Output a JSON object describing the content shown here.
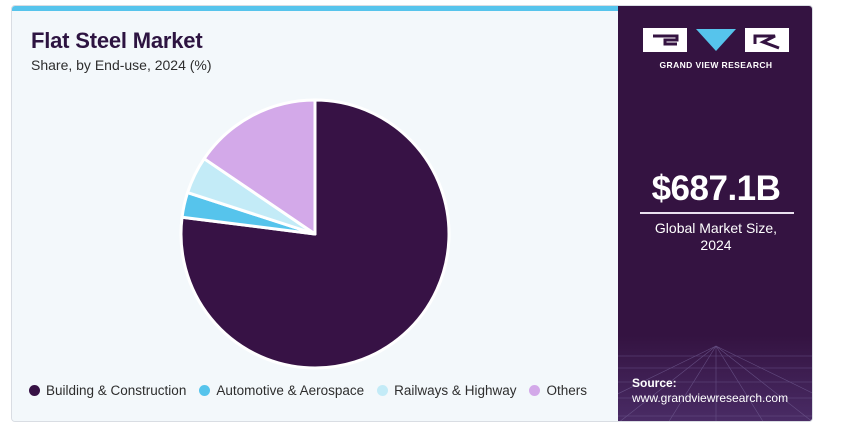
{
  "header": {
    "title": "Flat Steel Market",
    "subtitle": "Share, by End-use, 2024 (%)"
  },
  "chart_data": {
    "type": "pie",
    "title": "Flat Steel Market",
    "subtitle": "Share, by End-use, 2024 (%)",
    "categories": [
      "Building & Construction",
      "Automotive & Aerospace",
      "Railways & Highway",
      "Others"
    ],
    "values": [
      77.0,
      3.0,
      4.5,
      15.5
    ],
    "colors": [
      "#371245",
      "#56c4ec",
      "#c3ebf7",
      "#d3a9e9"
    ],
    "legend_position": "bottom"
  },
  "legend": {
    "items": [
      {
        "label": "Building & Construction",
        "color": "#371245"
      },
      {
        "label": "Automotive & Aerospace",
        "color": "#56c4ec"
      },
      {
        "label": "Railways & Highway",
        "color": "#c3ebf7"
      },
      {
        "label": "Others",
        "color": "#d3a9e9"
      }
    ]
  },
  "sidebar": {
    "brand": "GRAND VIEW RESEARCH",
    "logo_icon": "grand-view-research-logo",
    "kpi_value": "$687.1B",
    "kpi_label_line1": "Global Market Size,",
    "kpi_label_line2": "2024",
    "source_label": "Source:",
    "source_url": "www.grandviewresearch.com"
  },
  "colors": {
    "panel": "#341341",
    "accent": "#56c4ec",
    "background": "#f3f8fb"
  }
}
